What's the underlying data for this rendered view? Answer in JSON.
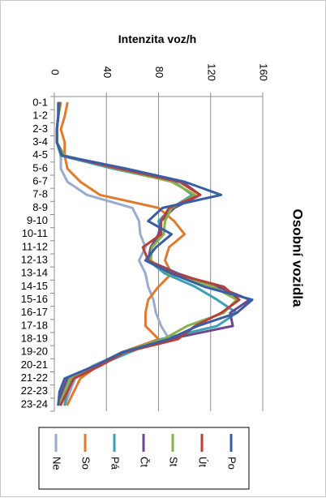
{
  "chart_data": {
    "type": "line",
    "title": "Osobní vozidla",
    "ylabel": "Intenzita voz/h",
    "xlabel": "",
    "ylim": [
      0,
      160
    ],
    "yticks": [
      0,
      40,
      80,
      120,
      160
    ],
    "categories": [
      "0-1",
      "1-2",
      "2-3",
      "3-4",
      "4-5",
      "5-6",
      "6-7",
      "7-8",
      "8-9",
      "9-10",
      "10-11",
      "11-12",
      "12-13",
      "13-14",
      "14-15",
      "15-16",
      "16-17",
      "17-18",
      "18-19",
      "19-20",
      "20-21",
      "21-22",
      "22-23",
      "23-24"
    ],
    "grid": true,
    "legend_placement": "bottom",
    "series": [
      {
        "name": "Po",
        "color": "#3a5ea3",
        "values": [
          3,
          3,
          2,
          2,
          6,
          55,
          100,
          128,
          83,
          72,
          90,
          78,
          70,
          90,
          115,
          152,
          140,
          110,
          88,
          52,
          32,
          8,
          4,
          3
        ]
      },
      {
        "name": "Út",
        "color": "#b8403a",
        "values": [
          4,
          3,
          2,
          2,
          6,
          50,
          96,
          112,
          88,
          82,
          82,
          68,
          72,
          92,
          130,
          142,
          128,
          108,
          95,
          54,
          36,
          15,
          10,
          5
        ]
      },
      {
        "name": "St",
        "color": "#88b04b",
        "values": [
          5,
          3,
          2,
          2,
          8,
          48,
          90,
          108,
          90,
          85,
          84,
          75,
          74,
          88,
          122,
          140,
          130,
          102,
          84,
          52,
          34,
          12,
          8,
          4
        ]
      },
      {
        "name": "Čt",
        "color": "#6a4a8c",
        "values": [
          4,
          3,
          2,
          2,
          6,
          52,
          98,
          112,
          92,
          82,
          80,
          74,
          72,
          95,
          125,
          150,
          135,
          137,
          88,
          52,
          32,
          10,
          6,
          3
        ]
      },
      {
        "name": "Pá",
        "color": "#3aa0b8",
        "values": [
          4,
          3,
          2,
          2,
          5,
          45,
          92,
          106,
          90,
          80,
          82,
          74,
          72,
          85,
          108,
          125,
          140,
          125,
          82,
          58,
          34,
          14,
          10,
          8
        ]
      },
      {
        "name": "So",
        "color": "#e07b2e",
        "values": [
          10,
          8,
          5,
          8,
          8,
          10,
          20,
          35,
          80,
          92,
          100,
          88,
          85,
          90,
          80,
          72,
          70,
          70,
          80,
          52,
          34,
          20,
          15,
          10
        ]
      },
      {
        "name": "Ne",
        "color": "#9aabd0",
        "values": [
          4,
          3,
          2,
          2,
          5,
          5,
          10,
          25,
          60,
          65,
          66,
          70,
          65,
          70,
          72,
          76,
          78,
          82,
          88,
          55,
          30,
          16,
          12,
          8
        ]
      }
    ]
  }
}
